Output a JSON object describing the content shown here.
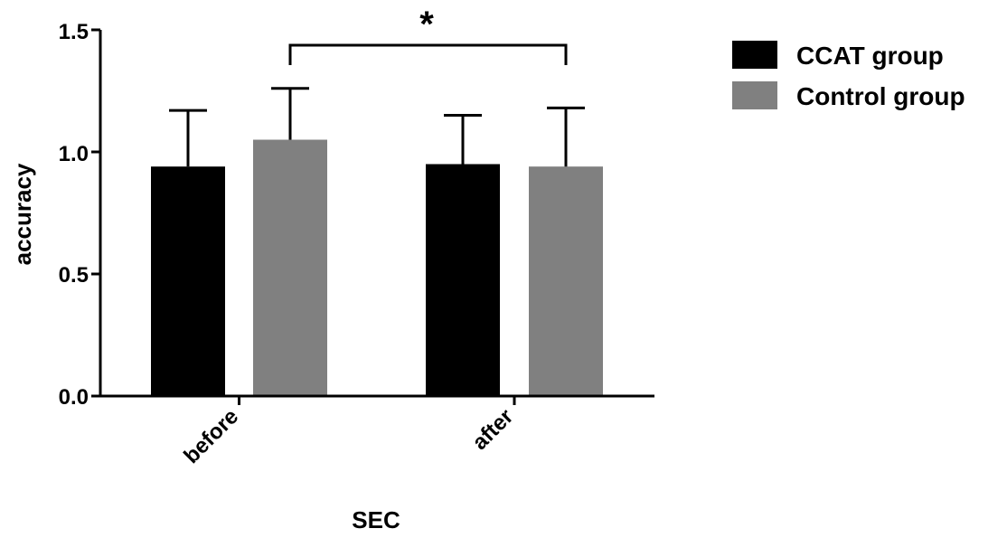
{
  "chart_data": {
    "type": "bar",
    "xlabel": "SEC",
    "ylabel": "accuracy",
    "ylim": [
      0,
      1.5
    ],
    "yticks": [
      "0.0",
      "0.5",
      "1.0",
      "1.5"
    ],
    "categories": [
      "before",
      "after"
    ],
    "series": [
      {
        "name": "CCAT group",
        "color": "#000000",
        "values": [
          0.94,
          0.95
        ],
        "errors": [
          0.23,
          0.2
        ]
      },
      {
        "name": "Control group",
        "color": "#808080",
        "values": [
          1.05,
          0.94
        ],
        "errors": [
          0.21,
          0.24
        ]
      }
    ],
    "significance": {
      "label": "*",
      "from_bar": [
        "before",
        "Control group"
      ],
      "to_bar": [
        "after",
        "Control group"
      ]
    },
    "legend_position": "top-right",
    "grid": false
  }
}
